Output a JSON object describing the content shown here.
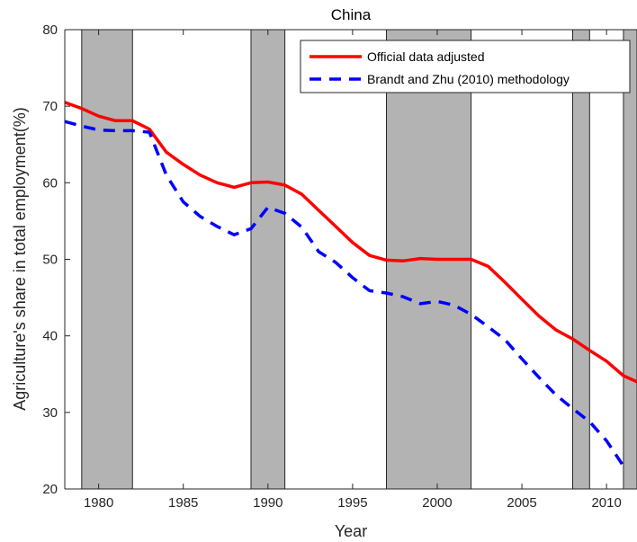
{
  "chart_data": {
    "type": "line",
    "title": "China",
    "xlabel": "Year",
    "ylabel": "Agriculture's share in total employment(%)",
    "xlim": [
      1978,
      2011.8
    ],
    "ylim": [
      20,
      80
    ],
    "xticks": [
      1980,
      1985,
      1990,
      1995,
      2000,
      2005,
      2010
    ],
    "yticks": [
      20,
      30,
      40,
      50,
      60,
      70,
      80
    ],
    "grid": false,
    "legend_position": "top-right",
    "shaded_periods": [
      [
        1979,
        1982
      ],
      [
        1989,
        1991
      ],
      [
        1997,
        2002
      ],
      [
        2008,
        2009
      ],
      [
        2011,
        2011.8
      ]
    ],
    "shade_color": "#b3b3b3",
    "series": [
      {
        "name": "Official data adjusted",
        "color": "#ff0000",
        "style": "solid",
        "x": [
          1978,
          1979,
          1980,
          1981,
          1982,
          1983,
          1984,
          1985,
          1986,
          1987,
          1988,
          1989,
          1990,
          1991,
          1992,
          1993,
          1994,
          1995,
          1996,
          1997,
          1998,
          1999,
          2000,
          2001,
          2002,
          2003,
          2004,
          2005,
          2006,
          2007,
          2008,
          2009,
          2010,
          2011,
          2011.8
        ],
        "y": [
          70.5,
          69.7,
          68.7,
          68.1,
          68.1,
          67.0,
          64.0,
          62.4,
          61.0,
          60.0,
          59.4,
          60.0,
          60.1,
          59.7,
          58.5,
          56.4,
          54.3,
          52.2,
          50.5,
          49.9,
          49.8,
          50.1,
          50.0,
          50.0,
          50.0,
          49.1,
          47.0,
          44.8,
          42.6,
          40.8,
          39.6,
          38.1,
          36.7,
          34.8,
          34.0
        ]
      },
      {
        "name": "Brandt and Zhu (2010) methodology",
        "color": "#0000ff",
        "style": "dashed",
        "x": [
          1978,
          1979,
          1980,
          1981,
          1982,
          1983,
          1984,
          1985,
          1986,
          1987,
          1988,
          1989,
          1990,
          1991,
          1992,
          1993,
          1994,
          1995,
          1996,
          1997,
          1998,
          1999,
          2000,
          2001,
          2002,
          2003,
          2004,
          2005,
          2006,
          2007,
          2008,
          2009,
          2010,
          2011
        ],
        "y": [
          68.0,
          67.4,
          66.9,
          66.8,
          66.8,
          66.6,
          61.0,
          57.5,
          55.6,
          54.3,
          53.2,
          54.0,
          56.8,
          56.0,
          54.2,
          51.0,
          49.6,
          47.6,
          45.9,
          45.6,
          45.1,
          44.2,
          44.5,
          44.0,
          42.8,
          41.2,
          39.5,
          37.0,
          34.6,
          32.3,
          30.5,
          28.8,
          26.3,
          23.0
        ]
      }
    ]
  }
}
